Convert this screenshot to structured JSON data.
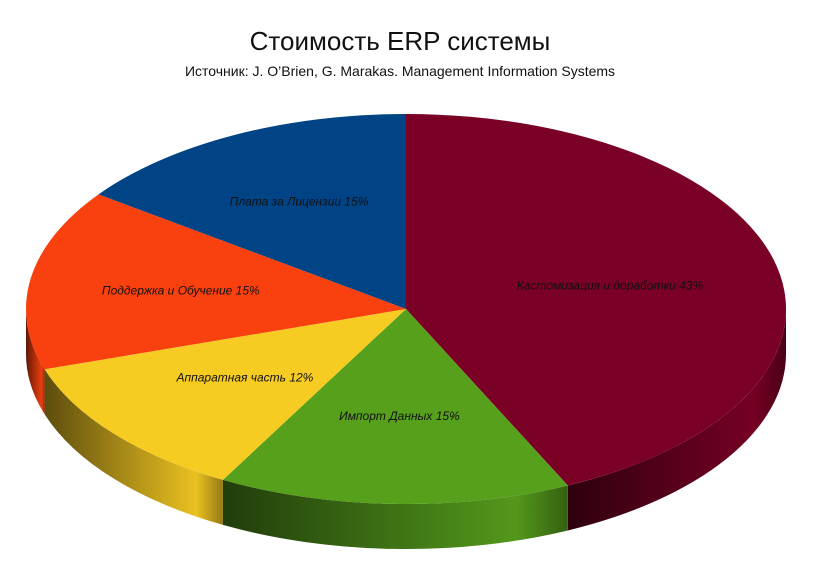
{
  "chart_data": {
    "type": "pie",
    "title": "Стоимость ERP системы",
    "subtitle": "Источник: J. O’Brien, G.  Marakas. Management Information Systems",
    "slices": [
      {
        "name": "Кастомизация и доработки",
        "value": 43,
        "label": "Кастомизация и доработки 43%",
        "color": "#7b0025"
      },
      {
        "name": "Импорт Данных",
        "value": 15,
        "label": "Импорт Данных 15%",
        "color": "#57a01c"
      },
      {
        "name": "Аппаратная часть",
        "value": 12,
        "label": "Аппаратная часть 12%",
        "color": "#f6cb22"
      },
      {
        "name": "Поддержка и Обучение",
        "value": 15,
        "label": "Поддержка и Обучение 15%",
        "color": "#f9410f"
      },
      {
        "name": "Плата за Лицензии",
        "value": 15,
        "label": "Плата за Лицензии 15%",
        "color": "#004486"
      }
    ],
    "start_angle_deg": 0,
    "direction": "clockwise",
    "three_d": true,
    "legend": "none"
  }
}
